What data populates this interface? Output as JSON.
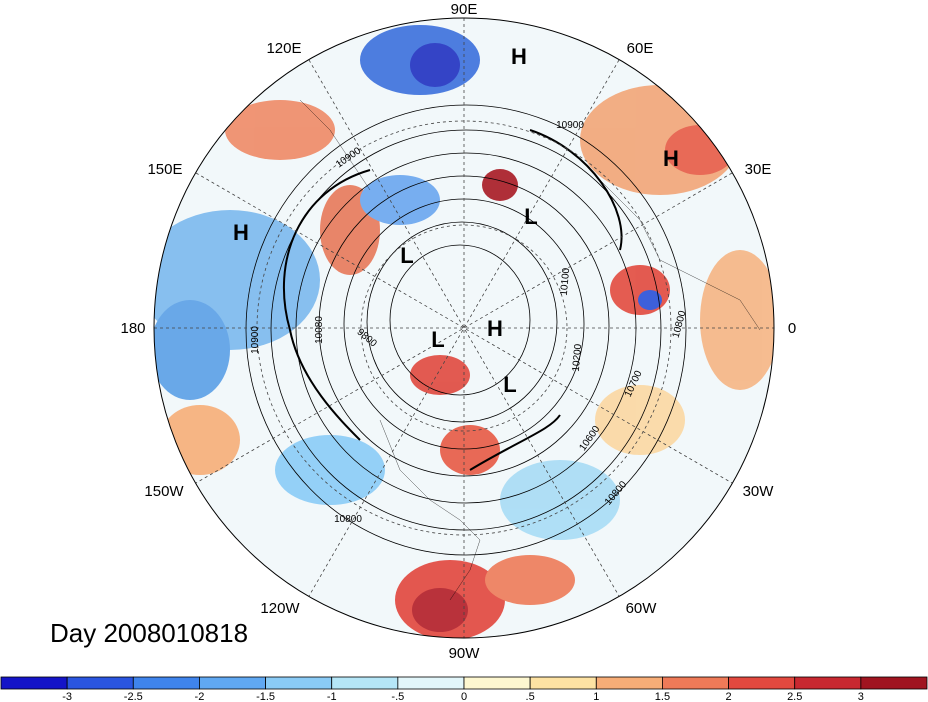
{
  "title": "Day 2008010818",
  "longitude_labels": [
    "90E",
    "60E",
    "30E",
    "0",
    "30W",
    "60W",
    "90W",
    "120W",
    "150W",
    "180",
    "150E",
    "120E"
  ],
  "pressure_centers": [
    {
      "type": "H",
      "lon_hint": "near 90E"
    },
    {
      "type": "H",
      "lon_hint": "near 30E"
    },
    {
      "type": "H",
      "lon_hint": "near 150E"
    },
    {
      "type": "L",
      "lon_hint": "near 60E"
    },
    {
      "type": "L",
      "lon_hint": "near 120E"
    },
    {
      "type": "L",
      "lon_hint": "near pole"
    },
    {
      "type": "H",
      "lon_hint": "near pole"
    },
    {
      "type": "L",
      "lon_hint": "near pole, toward 30W"
    }
  ],
  "contour_labels": [
    "10900",
    "10900",
    "10900",
    "10800",
    "10800",
    "10800",
    "10700",
    "10600",
    "10200",
    "10100",
    "10080",
    "9800"
  ],
  "colorbar": {
    "tick_labels": [
      "-3",
      "-2.5",
      "-2",
      "-1.5",
      "-1",
      "-.5",
      "0",
      ".5",
      "1",
      "1.5",
      "2",
      "2.5",
      "3"
    ],
    "colors": [
      "#1414c8",
      "#2a55e0",
      "#3f84ec",
      "#60a8f2",
      "#8acbf6",
      "#b5e6f7",
      "#e2f6fa",
      "#fdf7d0",
      "#fde2a3",
      "#f7ad77",
      "#ee7a58",
      "#e2493f",
      "#c82830",
      "#a01420"
    ]
  }
}
